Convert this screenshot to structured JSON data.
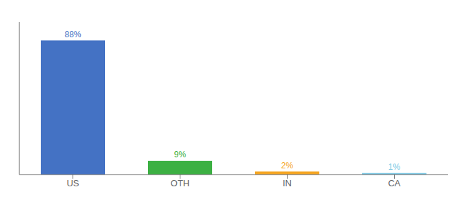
{
  "chart_data": {
    "type": "bar",
    "categories": [
      "US",
      "OTH",
      "IN",
      "CA"
    ],
    "values": [
      88,
      9,
      2,
      1
    ],
    "value_labels": [
      "88%",
      "9%",
      "2%",
      "1%"
    ],
    "colors": [
      "#4472c4",
      "#3cb043",
      "#f5a623",
      "#7ec8e3"
    ],
    "ylim": [
      0,
      100
    ],
    "data_labels": true,
    "tick_labels": "x"
  }
}
